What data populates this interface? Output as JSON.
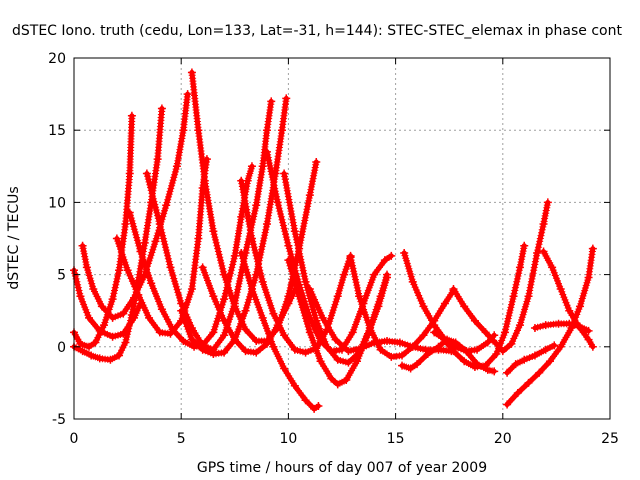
{
  "chart_data": {
    "type": "scatter",
    "title": "dSTEC Iono. truth (cedu, Lon=133, Lat=-31, h=144): STEC-STEC_elemax in phase cont",
    "xlabel": "GPS time / hours of day 007 of year 2009",
    "ylabel": "dSTEC  / TECUs",
    "xlim": [
      0,
      25
    ],
    "ylim": [
      -5,
      20
    ],
    "xticks": [
      0,
      5,
      10,
      15,
      20,
      25
    ],
    "yticks": [
      -5,
      0,
      5,
      10,
      15,
      20
    ],
    "grid": true,
    "marker": "+",
    "color": "#ff0000",
    "series": [
      {
        "points": [
          [
            0.0,
            5.3
          ],
          [
            0.3,
            3.5
          ],
          [
            0.7,
            2.0
          ],
          [
            1.2,
            1.1
          ],
          [
            1.8,
            0.7
          ],
          [
            2.3,
            0.9
          ],
          [
            2.8,
            2.0
          ],
          [
            3.1,
            3.0
          ]
        ]
      },
      {
        "points": [
          [
            0.0,
            0.0
          ],
          [
            0.4,
            -0.3
          ],
          [
            0.8,
            -0.6
          ],
          [
            1.2,
            -0.8
          ],
          [
            1.7,
            -0.9
          ],
          [
            2.1,
            -0.6
          ],
          [
            2.4,
            0.3
          ],
          [
            2.7,
            2.2
          ],
          [
            3.0,
            4.6
          ],
          [
            3.3,
            7.2
          ],
          [
            3.6,
            10.0
          ],
          [
            3.9,
            13.0
          ],
          [
            4.1,
            16.5
          ]
        ]
      },
      {
        "points": [
          [
            0.4,
            7.0
          ],
          [
            0.6,
            5.5
          ],
          [
            0.9,
            4.0
          ],
          [
            1.3,
            2.8
          ],
          [
            1.8,
            2.0
          ],
          [
            2.3,
            2.3
          ],
          [
            2.8,
            3.4
          ],
          [
            3.3,
            5.0
          ],
          [
            3.8,
            7.3
          ],
          [
            4.3,
            9.8
          ],
          [
            4.8,
            12.5
          ],
          [
            5.1,
            15.0
          ],
          [
            5.3,
            17.5
          ]
        ]
      },
      {
        "points": [
          [
            0.0,
            1.0
          ],
          [
            0.3,
            0.2
          ],
          [
            0.7,
            0.0
          ],
          [
            1.0,
            0.3
          ],
          [
            1.4,
            1.5
          ],
          [
            1.8,
            3.3
          ],
          [
            2.1,
            5.3
          ],
          [
            2.4,
            8.5
          ],
          [
            2.6,
            12.0
          ],
          [
            2.7,
            16.0
          ]
        ]
      },
      {
        "points": [
          [
            2.0,
            7.5
          ],
          [
            2.5,
            5.3
          ],
          [
            3.0,
            3.6
          ],
          [
            3.5,
            2.0
          ],
          [
            4.0,
            1.0
          ],
          [
            4.5,
            0.9
          ],
          [
            5.0,
            1.8
          ],
          [
            5.5,
            4.0
          ],
          [
            5.8,
            7.5
          ],
          [
            6.0,
            11.0
          ],
          [
            6.2,
            13.0
          ]
        ]
      },
      {
        "points": [
          [
            2.6,
            9.3
          ],
          [
            3.1,
            6.6
          ],
          [
            3.6,
            4.4
          ],
          [
            4.1,
            2.6
          ],
          [
            4.6,
            1.2
          ],
          [
            5.1,
            0.4
          ],
          [
            5.6,
            0.0
          ],
          [
            6.0,
            0.1
          ],
          [
            6.5,
            1.0
          ],
          [
            7.0,
            3.3
          ],
          [
            7.5,
            6.3
          ],
          [
            7.8,
            9.0
          ],
          [
            8.1,
            11.5
          ],
          [
            8.3,
            12.5
          ]
        ]
      },
      {
        "points": [
          [
            3.4,
            12.0
          ],
          [
            4.0,
            8.5
          ],
          [
            4.5,
            5.5
          ],
          [
            5.0,
            3.0
          ],
          [
            5.5,
            1.3
          ],
          [
            6.0,
            0.1
          ],
          [
            6.5,
            -0.2
          ],
          [
            7.0,
            0.8
          ],
          [
            7.5,
            3.0
          ],
          [
            8.0,
            6.5
          ],
          [
            8.5,
            9.8
          ],
          [
            8.8,
            12.5
          ],
          [
            9.0,
            15.0
          ],
          [
            9.2,
            17.0
          ]
        ]
      },
      {
        "points": [
          [
            5.5,
            19.0
          ],
          [
            5.8,
            15.0
          ],
          [
            6.1,
            11.5
          ],
          [
            6.5,
            8.0
          ],
          [
            7.0,
            5.0
          ],
          [
            7.5,
            2.8
          ],
          [
            8.0,
            1.2
          ],
          [
            8.5,
            0.4
          ],
          [
            9.0,
            0.4
          ],
          [
            9.5,
            1.3
          ],
          [
            10.0,
            3.5
          ],
          [
            10.5,
            6.8
          ],
          [
            11.0,
            10.5
          ],
          [
            11.3,
            12.8
          ]
        ]
      },
      {
        "points": [
          [
            5.0,
            2.5
          ],
          [
            5.5,
            0.5
          ],
          [
            6.0,
            -0.2
          ],
          [
            6.5,
            -0.5
          ],
          [
            7.0,
            -0.4
          ],
          [
            7.5,
            0.5
          ],
          [
            8.0,
            2.5
          ],
          [
            8.5,
            5.0
          ],
          [
            9.0,
            8.5
          ],
          [
            9.4,
            12.0
          ],
          [
            9.7,
            15.0
          ],
          [
            9.9,
            17.2
          ]
        ]
      },
      {
        "points": [
          [
            6.0,
            5.5
          ],
          [
            6.5,
            3.5
          ],
          [
            7.0,
            1.8
          ],
          [
            7.5,
            0.5
          ],
          [
            8.0,
            -0.3
          ],
          [
            8.5,
            -0.4
          ],
          [
            9.0,
            0.2
          ],
          [
            9.5,
            1.5
          ],
          [
            10.0,
            3.0
          ],
          [
            10.4,
            4.2
          ]
        ]
      },
      {
        "points": [
          [
            7.8,
            11.5
          ],
          [
            8.3,
            7.5
          ],
          [
            8.8,
            4.5
          ],
          [
            9.3,
            2.3
          ],
          [
            9.8,
            0.8
          ],
          [
            10.3,
            -0.2
          ],
          [
            10.8,
            -0.4
          ],
          [
            11.3,
            -0.1
          ],
          [
            11.8,
            1.2
          ],
          [
            12.3,
            3.5
          ],
          [
            12.6,
            5.0
          ],
          [
            12.9,
            6.3
          ]
        ]
      },
      {
        "points": [
          [
            7.8,
            6.5
          ],
          [
            8.3,
            4.0
          ],
          [
            8.8,
            2.0
          ],
          [
            9.3,
            0.0
          ],
          [
            9.8,
            -1.5
          ],
          [
            10.3,
            -2.7
          ],
          [
            10.8,
            -3.7
          ],
          [
            11.2,
            -4.3
          ],
          [
            11.4,
            -4.1
          ]
        ]
      },
      {
        "points": [
          [
            9.0,
            13.5
          ],
          [
            9.5,
            10.0
          ],
          [
            10.0,
            7.0
          ],
          [
            10.5,
            4.3
          ],
          [
            11.0,
            2.0
          ],
          [
            11.5,
            0.4
          ],
          [
            12.0,
            -0.3
          ],
          [
            12.5,
            -0.2
          ],
          [
            13.0,
            1.0
          ],
          [
            13.5,
            3.0
          ],
          [
            14.0,
            5.0
          ],
          [
            14.5,
            6.0
          ],
          [
            14.8,
            6.3
          ]
        ]
      },
      {
        "points": [
          [
            9.8,
            12.0
          ],
          [
            10.3,
            8.0
          ],
          [
            10.8,
            4.5
          ],
          [
            11.3,
            1.8
          ],
          [
            11.8,
            0.0
          ],
          [
            12.3,
            -0.9
          ],
          [
            12.8,
            -1.1
          ],
          [
            13.3,
            -0.4
          ],
          [
            13.8,
            1.3
          ],
          [
            14.3,
            3.5
          ],
          [
            14.6,
            5.0
          ]
        ]
      },
      {
        "points": [
          [
            10.0,
            6.0
          ],
          [
            10.5,
            3.5
          ],
          [
            11.0,
            1.0
          ],
          [
            11.5,
            -1.0
          ],
          [
            12.0,
            -2.2
          ],
          [
            12.3,
            -2.6
          ],
          [
            12.7,
            -2.3
          ],
          [
            13.2,
            -1.0
          ],
          [
            13.7,
            0.8
          ],
          [
            14.2,
            2.8
          ],
          [
            14.6,
            4.8
          ]
        ]
      },
      {
        "points": [
          [
            11.0,
            4.0
          ],
          [
            11.6,
            2.0
          ],
          [
            12.2,
            0.5
          ],
          [
            12.8,
            -0.3
          ],
          [
            13.4,
            -0.1
          ],
          [
            14.0,
            0.3
          ],
          [
            14.6,
            0.4
          ],
          [
            15.2,
            0.3
          ],
          [
            15.8,
            0.0
          ],
          [
            16.4,
            -0.2
          ],
          [
            17.0,
            -0.2
          ],
          [
            17.6,
            -0.3
          ]
        ]
      },
      {
        "points": [
          [
            12.9,
            6.2
          ],
          [
            13.3,
            3.5
          ],
          [
            13.8,
            1.3
          ],
          [
            14.3,
            -0.2
          ],
          [
            14.8,
            -0.7
          ],
          [
            15.3,
            -0.6
          ],
          [
            15.8,
            0.0
          ],
          [
            16.3,
            0.8
          ],
          [
            16.8,
            1.8
          ],
          [
            17.3,
            3.0
          ],
          [
            17.7,
            3.9
          ]
        ]
      },
      {
        "points": [
          [
            15.4,
            6.5
          ],
          [
            15.8,
            4.5
          ],
          [
            16.3,
            2.8
          ],
          [
            16.8,
            1.5
          ],
          [
            17.3,
            0.5
          ],
          [
            17.8,
            0.0
          ],
          [
            18.3,
            -0.3
          ],
          [
            18.8,
            -0.2
          ],
          [
            19.3,
            0.3
          ],
          [
            19.6,
            0.8
          ]
        ]
      },
      {
        "points": [
          [
            15.3,
            -1.3
          ],
          [
            15.7,
            -1.5
          ],
          [
            16.0,
            -1.2
          ],
          [
            16.5,
            -0.5
          ],
          [
            17.0,
            0.0
          ],
          [
            17.4,
            0.5
          ],
          [
            17.8,
            0.3
          ],
          [
            18.3,
            -0.3
          ],
          [
            18.8,
            -1.2
          ],
          [
            19.3,
            -1.6
          ],
          [
            19.6,
            -1.7
          ]
        ]
      },
      {
        "points": [
          [
            16.8,
            1.0
          ],
          [
            17.2,
            0.6
          ],
          [
            17.7,
            -0.3
          ],
          [
            18.2,
            -1.0
          ],
          [
            18.7,
            -1.4
          ],
          [
            19.2,
            -1.3
          ],
          [
            19.7,
            -0.5
          ],
          [
            20.1,
            1.0
          ],
          [
            20.5,
            3.5
          ],
          [
            20.8,
            5.5
          ],
          [
            21.0,
            7.0
          ]
        ]
      },
      {
        "points": [
          [
            17.7,
            4.0
          ],
          [
            18.2,
            2.8
          ],
          [
            18.7,
            1.8
          ],
          [
            19.2,
            1.0
          ],
          [
            19.7,
            0.2
          ],
          [
            20.0,
            -0.3
          ],
          [
            20.4,
            0.2
          ],
          [
            20.8,
            1.5
          ],
          [
            21.2,
            3.5
          ],
          [
            21.6,
            6.5
          ],
          [
            21.9,
            8.5
          ],
          [
            22.1,
            10.0
          ]
        ]
      },
      {
        "points": [
          [
            20.2,
            -4.0
          ],
          [
            20.7,
            -3.2
          ],
          [
            21.2,
            -2.5
          ],
          [
            21.7,
            -1.8
          ],
          [
            22.2,
            -1.0
          ],
          [
            22.7,
            0.0
          ],
          [
            23.2,
            1.3
          ],
          [
            23.6,
            2.8
          ],
          [
            24.0,
            4.8
          ],
          [
            24.2,
            6.8
          ]
        ]
      },
      {
        "points": [
          [
            20.2,
            -1.8
          ],
          [
            20.6,
            -1.2
          ],
          [
            21.0,
            -0.9
          ],
          [
            21.5,
            -0.6
          ],
          [
            22.0,
            -0.2
          ],
          [
            22.4,
            0.1
          ]
        ]
      },
      {
        "points": [
          [
            21.9,
            6.6
          ],
          [
            22.3,
            5.5
          ],
          [
            22.7,
            4.0
          ],
          [
            23.1,
            2.5
          ],
          [
            23.5,
            1.5
          ],
          [
            24.0,
            0.5
          ],
          [
            24.2,
            0.0
          ]
        ]
      },
      {
        "points": [
          [
            21.5,
            1.3
          ],
          [
            22.0,
            1.5
          ],
          [
            22.6,
            1.6
          ],
          [
            23.1,
            1.6
          ],
          [
            23.6,
            1.4
          ],
          [
            24.0,
            1.1
          ]
        ]
      }
    ]
  }
}
